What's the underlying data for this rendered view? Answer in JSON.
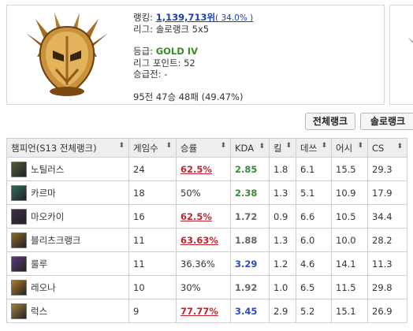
{
  "profile": {
    "rank_label": "랭킹: ",
    "rank_value": "1,139,713위",
    "rank_percent": "( 34.0% )",
    "league": "리그: 솔로랭크 5x5",
    "tier_label": "등급: ",
    "tier_value": "GOLD IV",
    "league_points": "리그 포인트: 52",
    "promotion": "승급전: -",
    "record": "95전 47승 48패 (49.47%)"
  },
  "buttons": {
    "all_rank": "전체랭크",
    "solo_rank": "솔로랭크"
  },
  "table": {
    "headers": [
      "챔피언(S13 전체랭크)",
      "게임수",
      "승률",
      "KDA",
      "킬",
      "데쓰",
      "어시",
      "CS"
    ],
    "sort_glyph": "⬍",
    "rows": [
      {
        "champ": "노틸러스",
        "games": "24",
        "winrate": "62.5%",
        "high": true,
        "kda": "2.85",
        "kda_class": "kda-g",
        "kills": "1.8",
        "deaths": "6.1",
        "assists": "15.5",
        "cs": "29.3",
        "icon": "#4a5b3a"
      },
      {
        "champ": "카르마",
        "games": "18",
        "winrate": "50%",
        "high": false,
        "kda": "2.38",
        "kda_class": "kda-g",
        "kills": "1.3",
        "deaths": "5.1",
        "assists": "10.9",
        "cs": "17.9",
        "icon": "#2f6b5c"
      },
      {
        "champ": "마오카이",
        "games": "16",
        "winrate": "62.5%",
        "high": true,
        "kda": "1.72",
        "kda_class": "kda-n",
        "kills": "0.9",
        "deaths": "6.6",
        "assists": "10.5",
        "cs": "34.4",
        "icon": "#3c2d4a"
      },
      {
        "champ": "블리츠크랭크",
        "games": "11",
        "winrate": "63.63%",
        "high": true,
        "kda": "1.88",
        "kda_class": "kda-n",
        "kills": "1.3",
        "deaths": "6.0",
        "assists": "10.0",
        "cs": "28.2",
        "icon": "#8a6a2a"
      },
      {
        "champ": "룰루",
        "games": "11",
        "winrate": "36.36%",
        "high": false,
        "kda": "3.29",
        "kda_class": "kda-b",
        "kills": "1.2",
        "deaths": "4.6",
        "assists": "14.1",
        "cs": "11.3",
        "icon": "#5b3a7a"
      },
      {
        "champ": "레오나",
        "games": "10",
        "winrate": "30%",
        "high": false,
        "kda": "1.92",
        "kda_class": "kda-n",
        "kills": "1.0",
        "deaths": "6.5",
        "assists": "11.5",
        "cs": "29.8",
        "icon": "#b07a2a"
      },
      {
        "champ": "럭스",
        "games": "9",
        "winrate": "77.77%",
        "high": true,
        "kda": "3.45",
        "kda_class": "kda-b",
        "kills": "2.9",
        "deaths": "5.2",
        "assists": "15.1",
        "cs": "26.9",
        "icon": "#a08040"
      }
    ]
  }
}
